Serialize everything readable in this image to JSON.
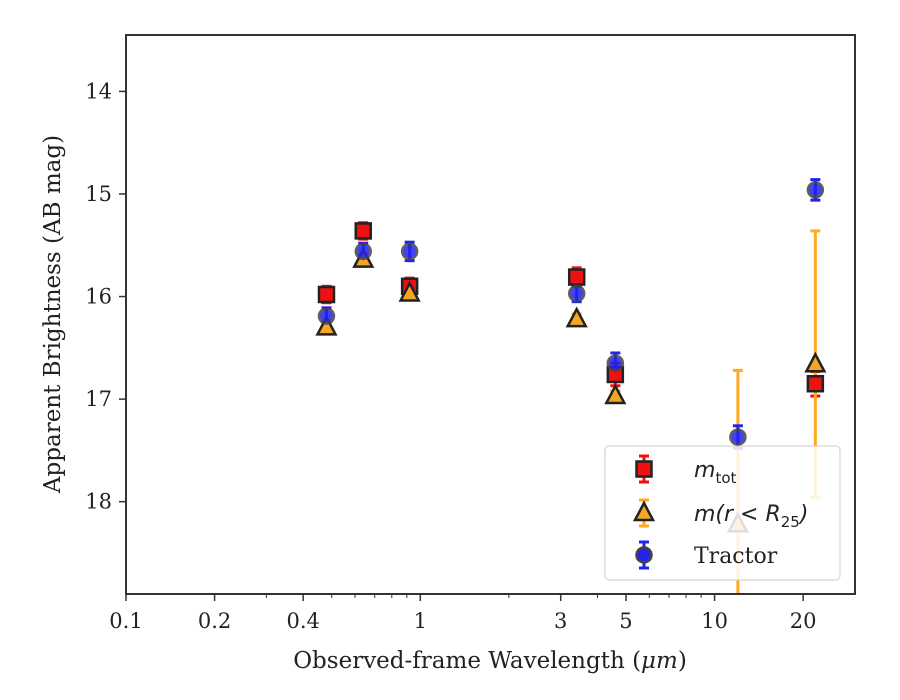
{
  "chart_data": {
    "type": "scatter",
    "xlabel_prefix": "Observed-frame Wavelength (",
    "xlabel_unit": "μm",
    "xlabel_suffix": ")",
    "ylabel": "Apparent Brightness (AB mag)",
    "x_scale": "log",
    "xlim": [
      0.1,
      30
    ],
    "ylim": [
      18.9,
      13.45
    ],
    "y_inverted": true,
    "x_ticks": [
      {
        "value": 0.1,
        "label": "0.1"
      },
      {
        "value": 0.2,
        "label": "0.2"
      },
      {
        "value": 0.4,
        "label": "0.4"
      },
      {
        "value": 1,
        "label": "1"
      },
      {
        "value": 3,
        "label": "3"
      },
      {
        "value": 5,
        "label": "5"
      },
      {
        "value": 10,
        "label": "10"
      },
      {
        "value": 20,
        "label": "20"
      }
    ],
    "y_ticks": [
      {
        "value": 14,
        "label": "14"
      },
      {
        "value": 15,
        "label": "15"
      },
      {
        "value": 16,
        "label": "16"
      },
      {
        "value": 17,
        "label": "17"
      },
      {
        "value": 18,
        "label": "18"
      }
    ],
    "grid": false,
    "legend_position": "bottom-right",
    "series": [
      {
        "key": "mtot",
        "legend_main": "m",
        "legend_sub": "tot",
        "marker": "square",
        "color": "#ee1111",
        "edge": "#222222",
        "errcolor": "#ee1111",
        "points": [
          {
            "x": 0.48,
            "y": 15.98,
            "err": 0.08
          },
          {
            "x": 0.64,
            "y": 15.36,
            "err": 0.08
          },
          {
            "x": 0.92,
            "y": 15.9,
            "err": 0.08
          },
          {
            "x": 3.4,
            "y": 15.81,
            "err": 0.09
          },
          {
            "x": 4.6,
            "y": 16.76,
            "err": 0.11
          },
          {
            "x": 22.0,
            "y": 16.85,
            "err": 0.12
          }
        ]
      },
      {
        "key": "mr25",
        "legend_main": "m(r < R",
        "legend_sub": "25",
        "legend_close": ")",
        "marker": "triangle",
        "color": "#f5a623",
        "edge": "#222222",
        "errcolor": "#ffaa22",
        "points": [
          {
            "x": 0.48,
            "y": 16.3,
            "err": 0.05
          },
          {
            "x": 0.64,
            "y": 15.64,
            "err": 0.05
          },
          {
            "x": 0.92,
            "y": 15.97,
            "err": 0.05
          },
          {
            "x": 3.4,
            "y": 16.22,
            "err": 0.05
          },
          {
            "x": 4.6,
            "y": 16.97,
            "err": 0.05
          },
          {
            "x": 12.0,
            "y": 18.22,
            "err": 1.5
          },
          {
            "x": 22.0,
            "y": 16.66,
            "err": 1.3
          }
        ]
      },
      {
        "key": "tractor",
        "legend_main": "Tractor",
        "marker": "circle",
        "color": "#2222ee",
        "edge": "#444444",
        "errcolor": "#2222ee",
        "points": [
          {
            "x": 0.48,
            "y": 16.19,
            "err": 0.08
          },
          {
            "x": 0.64,
            "y": 15.56,
            "err": 0.08
          },
          {
            "x": 0.92,
            "y": 15.56,
            "err": 0.09
          },
          {
            "x": 3.4,
            "y": 15.97,
            "err": 0.08
          },
          {
            "x": 4.6,
            "y": 16.65,
            "err": 0.1
          },
          {
            "x": 12.0,
            "y": 17.37,
            "err": 0.11
          },
          {
            "x": 22.0,
            "y": 14.96,
            "err": 0.1
          }
        ]
      }
    ]
  }
}
